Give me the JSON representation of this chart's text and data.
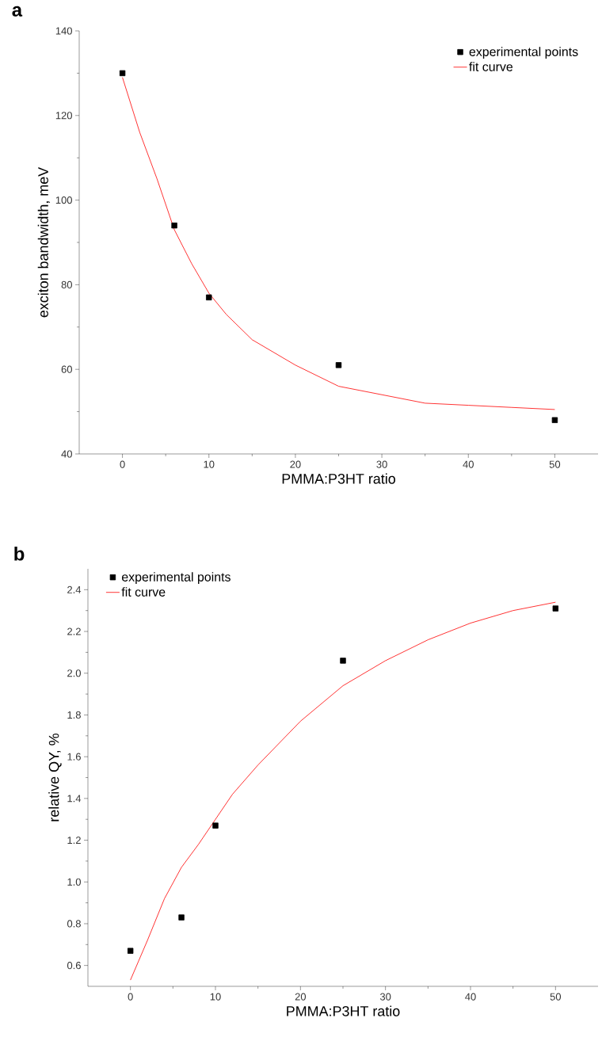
{
  "chart_data": [
    {
      "type": "scatter",
      "title": "a",
      "xlabel": "PMMA:P3HT ratio",
      "ylabel": "exciton bandwidth, meV",
      "x": [
        0,
        6,
        10,
        25,
        50
      ],
      "xlim": [
        -5,
        55
      ],
      "ylim": [
        40,
        140
      ],
      "xticks": [
        0,
        10,
        20,
        30,
        40,
        50
      ],
      "yticks": [
        40,
        60,
        80,
        100,
        120,
        140
      ],
      "grid": false,
      "legend": "top right",
      "series": [
        {
          "name": "experimental points",
          "color": "#000000",
          "marker": "square",
          "values": [
            130,
            94,
            77,
            61,
            48
          ]
        },
        {
          "name": "fit curve",
          "type": "line",
          "color": "#ff0000",
          "marker": "none",
          "x": [
            0,
            2,
            4,
            6,
            8,
            10,
            12,
            15,
            20,
            25,
            30,
            35,
            40,
            45,
            50
          ],
          "values": [
            129,
            116,
            105,
            93,
            85,
            78,
            73,
            67,
            61,
            56,
            54,
            52,
            51.5,
            51,
            50.5
          ]
        }
      ]
    },
    {
      "type": "scatter",
      "title": "b",
      "xlabel": "PMMA:P3HT ratio",
      "ylabel": "relative QY, %",
      "x": [
        0,
        6,
        10,
        25,
        50
      ],
      "xlim": [
        -5,
        55
      ],
      "ylim": [
        0.5,
        2.5
      ],
      "xticks": [
        0,
        10,
        20,
        30,
        40,
        50
      ],
      "yticks": [
        {
          "value": 0.6,
          "label": "0.6"
        },
        {
          "value": 0.8,
          "label": "0.8"
        },
        {
          "value": 1.0,
          "label": "1.0"
        },
        {
          "value": 1.2,
          "label": "1.2"
        },
        {
          "value": 1.4,
          "label": "1.4"
        },
        {
          "value": 1.6,
          "label": "1.6"
        },
        {
          "value": 1.8,
          "label": "1.8"
        },
        {
          "value": 2.0,
          "label": "2.0"
        },
        {
          "value": 2.2,
          "label": "2.2"
        },
        {
          "value": 2.4,
          "label": "2.4"
        }
      ],
      "grid": false,
      "legend": "top left",
      "series": [
        {
          "name": "experimental points",
          "color": "#000000",
          "marker": "square",
          "values": [
            0.67,
            0.83,
            1.27,
            2.06,
            2.31
          ]
        },
        {
          "name": "fit curve",
          "type": "line",
          "color": "#ff0000",
          "marker": "none",
          "x": [
            0,
            2,
            4,
            6,
            8,
            10,
            12,
            15,
            20,
            25,
            30,
            35,
            40,
            45,
            50
          ],
          "values": [
            0.53,
            0.72,
            0.92,
            1.07,
            1.18,
            1.3,
            1.42,
            1.56,
            1.77,
            1.94,
            2.06,
            2.16,
            2.24,
            2.3,
            2.34
          ]
        }
      ]
    }
  ]
}
